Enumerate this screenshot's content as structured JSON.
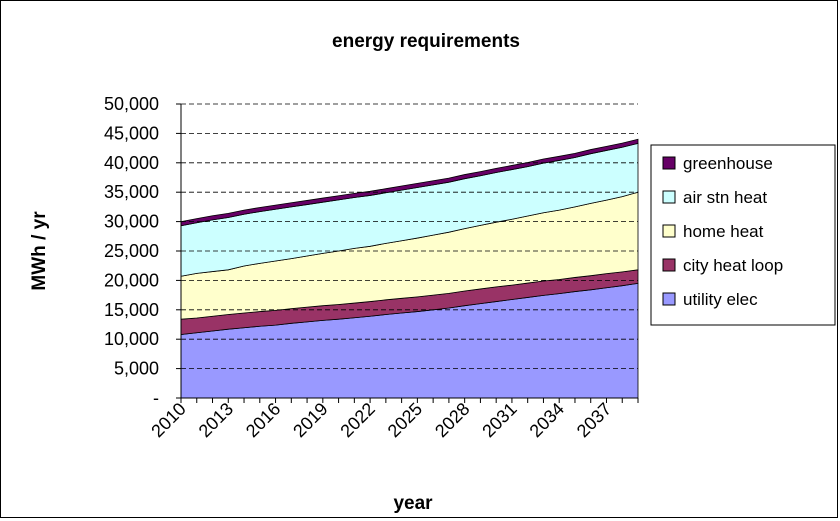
{
  "chart_data": {
    "type": "area",
    "stacked": true,
    "title": "energy requirements",
    "xlabel": "year",
    "ylabel": "MWh / yr",
    "x": [
      2010,
      2011,
      2012,
      2013,
      2014,
      2015,
      2016,
      2017,
      2018,
      2019,
      2020,
      2021,
      2022,
      2023,
      2024,
      2025,
      2026,
      2027,
      2028,
      2029,
      2030,
      2031,
      2032,
      2033,
      2034,
      2035,
      2036,
      2037,
      2038,
      2039
    ],
    "x_tick_labels": [
      "2010",
      "2013",
      "2016",
      "2019",
      "2022",
      "2025",
      "2028",
      "2031",
      "2034",
      "2037"
    ],
    "ylim": [
      0,
      50000
    ],
    "y_tick_labels": [
      "-",
      "5,000",
      "10,000",
      "15,000",
      "20,000",
      "25,000",
      "30,000",
      "35,000",
      "40,000",
      "45,000",
      "50,000"
    ],
    "grid": "horizontal dashed",
    "legend_position": "right",
    "series": [
      {
        "name": "utility elec",
        "color": "#9999ff",
        "values": [
          10800,
          11100,
          11400,
          11700,
          11950,
          12200,
          12400,
          12700,
          12950,
          13200,
          13400,
          13650,
          13900,
          14200,
          14450,
          14700,
          15000,
          15300,
          15700,
          16050,
          16400,
          16750,
          17100,
          17450,
          17750,
          18100,
          18400,
          18750,
          19100,
          19500
        ]
      },
      {
        "name": "city heat loop",
        "color": "#993366",
        "values": [
          2600,
          2500,
          2500,
          2500,
          2500,
          2500,
          2500,
          2500,
          2500,
          2500,
          2500,
          2500,
          2500,
          2500,
          2500,
          2500,
          2500,
          2500,
          2500,
          2500,
          2500,
          2450,
          2450,
          2450,
          2400,
          2400,
          2400,
          2400,
          2350,
          2300
        ]
      },
      {
        "name": "home heat",
        "color": "#ffffcc",
        "values": [
          7300,
          7600,
          7600,
          7600,
          8000,
          8200,
          8400,
          8500,
          8700,
          8900,
          9100,
          9300,
          9400,
          9600,
          9800,
          10000,
          10200,
          10400,
          10600,
          10800,
          11000,
          11200,
          11400,
          11600,
          11800,
          12000,
          12300,
          12500,
          12800,
          13200
        ]
      },
      {
        "name": "air stn heat",
        "color": "#ccffff",
        "values": [
          8600,
          8600,
          8800,
          8900,
          8800,
          8800,
          8800,
          8800,
          8750,
          8700,
          8700,
          8650,
          8650,
          8600,
          8600,
          8600,
          8550,
          8500,
          8500,
          8450,
          8450,
          8450,
          8400,
          8450,
          8450,
          8400,
          8450,
          8450,
          8400,
          8300
        ]
      },
      {
        "name": "greenhouse",
        "color": "#660066",
        "values": [
          700,
          700,
          700,
          700,
          700,
          700,
          700,
          700,
          700,
          700,
          700,
          700,
          700,
          700,
          700,
          700,
          700,
          700,
          700,
          700,
          700,
          700,
          700,
          700,
          700,
          700,
          700,
          700,
          700,
          700
        ]
      }
    ]
  }
}
